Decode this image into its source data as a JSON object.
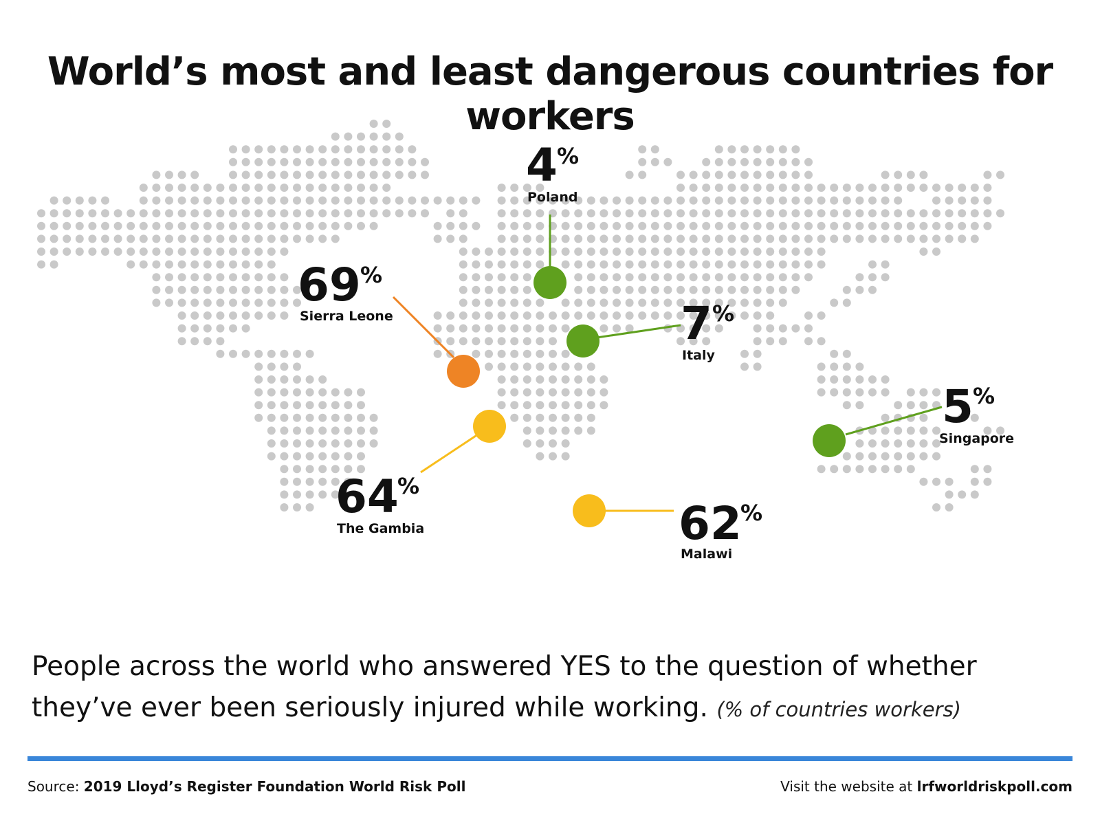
{
  "title": "World’s most and least dangerous countries for workers",
  "colors": {
    "dot": "#c9c9c9",
    "green": "#5fa01e",
    "orange": "#ee8425",
    "yellow": "#f8bd1c",
    "rule": "#3a86d9"
  },
  "markers": [
    {
      "country": "Poland",
      "value": "4",
      "unit": "%",
      "color": "green"
    },
    {
      "country": "Italy",
      "value": "7",
      "unit": "%",
      "color": "green"
    },
    {
      "country": "Sierra Leone",
      "value": "69",
      "unit": "%",
      "color": "orange"
    },
    {
      "country": "The Gambia",
      "value": "64",
      "unit": "%",
      "color": "yellow"
    },
    {
      "country": "Malawi",
      "value": "62",
      "unit": "%",
      "color": "yellow"
    },
    {
      "country": "Singapore",
      "value": "5",
      "unit": "%",
      "color": "green"
    }
  ],
  "caption": {
    "text": "People across the world who answered YES to the question of whether they’ve ever been seriously injured while working.",
    "note": "(% of countries workers)"
  },
  "footer": {
    "source_prefix": "Source:",
    "source": "2019 Lloyd’s Register Foundation World Risk Poll",
    "visit_prefix": "Visit the website at",
    "url": "lrfworldriskpoll.com"
  }
}
